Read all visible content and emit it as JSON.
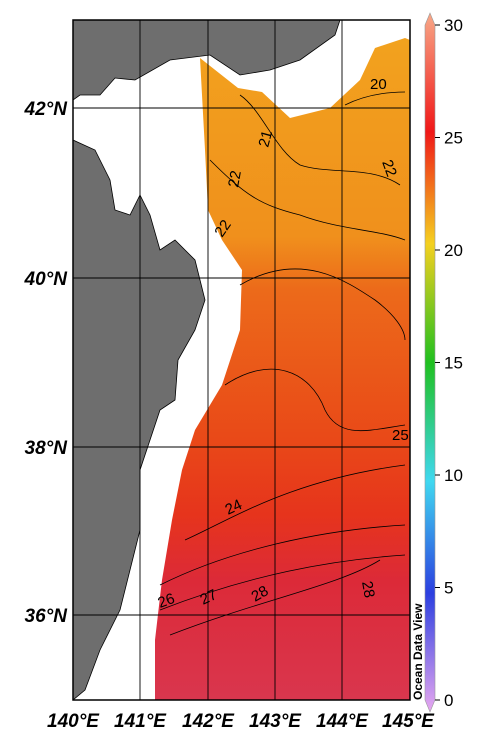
{
  "map": {
    "lat_labels": [
      "42°N",
      "40°N",
      "38°N",
      "36°N"
    ],
    "lon_labels": [
      "140°E",
      "141°E",
      "142°E",
      "143°E",
      "144°E",
      "145°E"
    ],
    "contour_labels": [
      "20",
      "21",
      "22",
      "22",
      "22",
      "24",
      "25",
      "26",
      "27",
      "28",
      "28"
    ],
    "colorbar": {
      "ticks": [
        0,
        5,
        10,
        15,
        20,
        25,
        30
      ],
      "lim": [
        0,
        30
      ]
    },
    "watermark": "Ocean Data View"
  }
}
